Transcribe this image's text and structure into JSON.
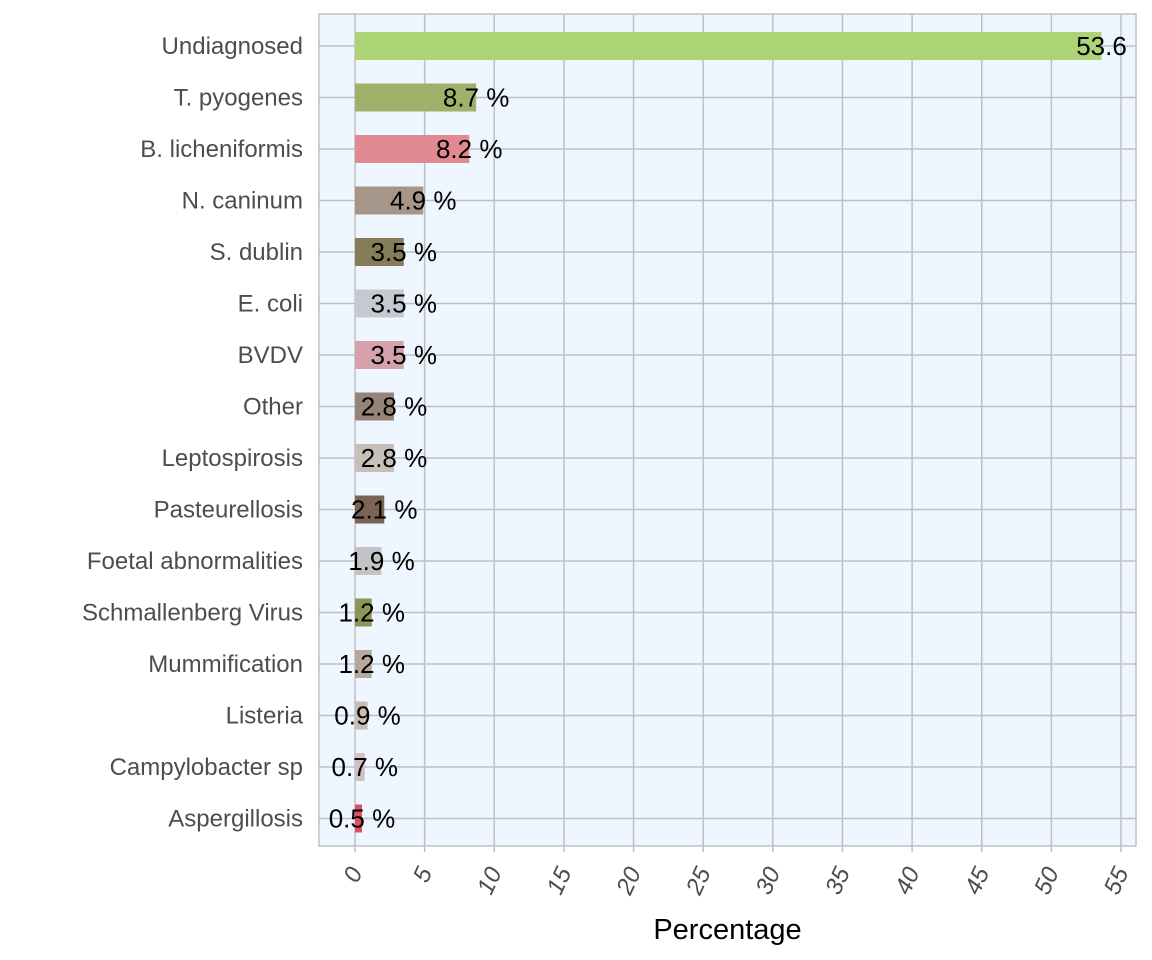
{
  "chart_data": {
    "type": "bar",
    "orientation": "horizontal",
    "title": "",
    "xlabel": "Percentage",
    "ylabel": "",
    "xlim": [
      0,
      55
    ],
    "xticks": [
      0,
      5,
      10,
      15,
      20,
      25,
      30,
      35,
      40,
      45,
      50,
      55
    ],
    "grid": true,
    "legend": "none",
    "categories": [
      "Undiagnosed",
      "T. pyogenes",
      "B. licheniformis",
      "N. caninum",
      "S. dublin",
      "E. coli",
      "BVDV",
      "Other",
      "Leptospirosis",
      "Pasteurellosis",
      "Foetal abnormalities",
      "Schmallenberg Virus",
      "Mummification",
      "Listeria",
      "Campylobacter sp",
      "Aspergillosis"
    ],
    "values": [
      53.6,
      8.7,
      8.2,
      4.9,
      3.5,
      3.5,
      3.5,
      2.8,
      2.8,
      2.1,
      1.9,
      1.2,
      1.2,
      0.9,
      0.7,
      0.5
    ],
    "labels": [
      "53.6",
      "8.7 %",
      "8.2 %",
      "4.9 %",
      "3.5 %",
      "3.5 %",
      "3.5 %",
      "2.8 %",
      "2.8 %",
      "2.1 %",
      "1.9 %",
      "1.2 %",
      "1.2 %",
      "0.9 %",
      "0.7 %",
      "0.5 %"
    ],
    "colors": [
      "#acd374",
      "#a0b06b",
      "#e08991",
      "#a69689",
      "#857c5a",
      "#c6c9d0",
      "#d5a1aa",
      "#978478",
      "#c6bfba",
      "#7b6355",
      "#c3c3c3",
      "#8c9658",
      "#b6a89d",
      "#c8bcb4",
      "#d0c0c4",
      "#e0505c"
    ],
    "panel_background": "#eef6ff",
    "grid_color": "#c0c0c0"
  }
}
